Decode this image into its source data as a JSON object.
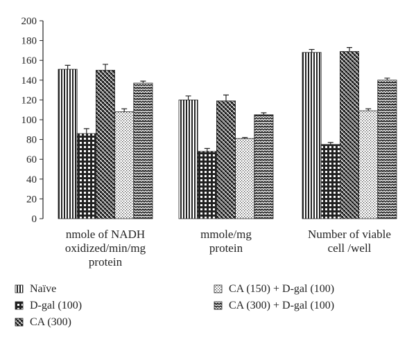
{
  "chart_data": {
    "type": "bar",
    "categories": [
      [
        "nmole of NADH",
        "oxidized/min/mg",
        "protein"
      ],
      [
        "mmole/mg",
        "protein"
      ],
      [
        "Number of viable",
        "cell /well"
      ]
    ],
    "series": [
      {
        "name": "Naïve",
        "values": [
          151,
          120,
          168
        ],
        "errors": [
          4,
          4,
          3
        ],
        "pattern": "vlines"
      },
      {
        "name": "D-gal (100)",
        "values": [
          86,
          68,
          75
        ],
        "errors": [
          5,
          3,
          2
        ],
        "pattern": "grid"
      },
      {
        "name": "CA (300)",
        "values": [
          150,
          119,
          169
        ],
        "errors": [
          6,
          6,
          4
        ],
        "pattern": "checker"
      },
      {
        "name": "CA (150) + D-gal (100)",
        "values": [
          108,
          81,
          109
        ],
        "errors": [
          3,
          1,
          2
        ],
        "pattern": "dots"
      },
      {
        "name": "CA (300) + D-gal (100)",
        "values": [
          137,
          105,
          140
        ],
        "errors": [
          2,
          2,
          2
        ],
        "pattern": "zigzag"
      }
    ],
    "yticks": [
      "0",
      "20",
      "40",
      "60",
      "80",
      "100",
      "120",
      "140",
      "160",
      "180",
      "200"
    ],
    "ylim": [
      0,
      200
    ],
    "title": "",
    "xlabel": "",
    "ylabel": "",
    "grid": false,
    "legend_position": "bottom",
    "colors": {
      "ink": "#222222",
      "background": "#ffffff"
    }
  }
}
